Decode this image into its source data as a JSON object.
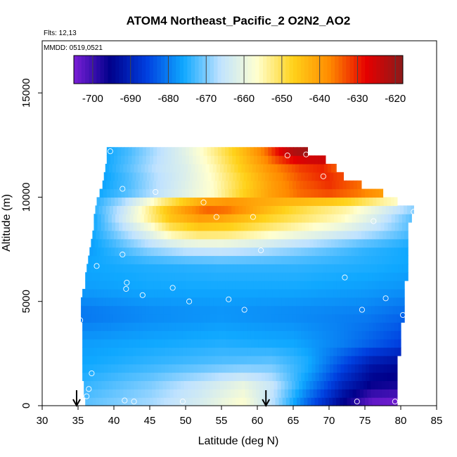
{
  "chart_data": {
    "type": "heatmap",
    "title": "ATOM4 Northeast_Pacific_2 O2N2_AO2",
    "info_lines": [
      "Flts: 12,13",
      "MMDD: 0519,0521"
    ],
    "xlabel": "Latitude (deg N)",
    "ylabel": "Altitude (m)",
    "xlim": [
      30,
      85
    ],
    "ylim": [
      0,
      17500
    ],
    "x_ticks": [
      "30",
      "35",
      "40",
      "45",
      "50",
      "55",
      "60",
      "65",
      "70",
      "75",
      "80",
      "85"
    ],
    "y_ticks": [
      "0",
      "5000",
      "10000",
      "15000"
    ],
    "colorbar": {
      "min": -705,
      "max": -618,
      "ticks": [
        "-700",
        "-690",
        "-680",
        "-670",
        "-660",
        "-650",
        "-640",
        "-630",
        "-620"
      ],
      "tick_values": [
        -700,
        -690,
        -680,
        -670,
        -660,
        -650,
        -640,
        -630,
        -620
      ],
      "colors": [
        "#7a1fd6",
        "#00008b",
        "#0040e0",
        "#0fa8ff",
        "#bfe2ff",
        "#ffffd0",
        "#ffd21a",
        "#ff8a00",
        "#e60000",
        "#8b1a1a"
      ]
    },
    "altitude_bands": [
      {
        "alt": 200,
        "lat_min": 36.0,
        "lat_max": 79.5
      },
      {
        "alt": 600,
        "lat_min": 35.8,
        "lat_max": 79.5
      },
      {
        "alt": 1000,
        "lat_min": 35.8,
        "lat_max": 79.5
      },
      {
        "alt": 1400,
        "lat_min": 35.6,
        "lat_max": 79.5
      },
      {
        "alt": 1800,
        "lat_min": 35.6,
        "lat_max": 79.5
      },
      {
        "alt": 2200,
        "lat_min": 35.6,
        "lat_max": 79.5
      },
      {
        "alt": 2600,
        "lat_min": 35.6,
        "lat_max": 80.0
      },
      {
        "alt": 3000,
        "lat_min": 35.6,
        "lat_max": 80.0
      },
      {
        "alt": 3400,
        "lat_min": 35.6,
        "lat_max": 80.0
      },
      {
        "alt": 3800,
        "lat_min": 35.6,
        "lat_max": 80.0
      },
      {
        "alt": 4200,
        "lat_min": 35.4,
        "lat_max": 80.5
      },
      {
        "alt": 4600,
        "lat_min": 35.4,
        "lat_max": 80.5
      },
      {
        "alt": 5000,
        "lat_min": 35.4,
        "lat_max": 80.5
      },
      {
        "alt": 5400,
        "lat_min": 35.6,
        "lat_max": 80.5
      },
      {
        "alt": 5800,
        "lat_min": 36.0,
        "lat_max": 80.5
      },
      {
        "alt": 6200,
        "lat_min": 36.0,
        "lat_max": 81.0
      },
      {
        "alt": 6600,
        "lat_min": 36.2,
        "lat_max": 81.0
      },
      {
        "alt": 7000,
        "lat_min": 36.4,
        "lat_max": 81.0
      },
      {
        "alt": 7400,
        "lat_min": 36.6,
        "lat_max": 81.0
      },
      {
        "alt": 7800,
        "lat_min": 36.8,
        "lat_max": 81.0
      },
      {
        "alt": 8200,
        "lat_min": 37.0,
        "lat_max": 81.0
      },
      {
        "alt": 8600,
        "lat_min": 37.2,
        "lat_max": 81.0
      },
      {
        "alt": 9000,
        "lat_min": 37.2,
        "lat_max": 81.5
      },
      {
        "alt": 9400,
        "lat_min": 37.4,
        "lat_max": 81.8
      },
      {
        "alt": 9800,
        "lat_min": 37.6,
        "lat_max": 79.5
      },
      {
        "alt": 10200,
        "lat_min": 38.0,
        "lat_max": 77.5
      },
      {
        "alt": 10600,
        "lat_min": 38.4,
        "lat_max": 74.5
      },
      {
        "alt": 11000,
        "lat_min": 38.6,
        "lat_max": 72.0
      },
      {
        "alt": 11400,
        "lat_min": 38.8,
        "lat_max": 71.0
      },
      {
        "alt": 11800,
        "lat_min": 39.0,
        "lat_max": 69.5
      },
      {
        "alt": 12200,
        "lat_min": 39.0,
        "lat_max": 67.0
      }
    ],
    "value_anchors": [
      {
        "alt": 200,
        "lat": [
          36,
          45,
          52,
          58,
          62,
          67,
          72,
          76,
          79.5
        ],
        "value": [
          -672,
          -668,
          -663,
          -657,
          -666,
          -682,
          -695,
          -703,
          -704
        ]
      },
      {
        "alt": 1000,
        "lat": [
          36,
          45,
          52,
          58,
          62,
          67,
          72,
          76,
          79.5
        ],
        "value": [
          -674,
          -670,
          -665,
          -660,
          -665,
          -678,
          -690,
          -696,
          -697
        ]
      },
      {
        "alt": 2000,
        "lat": [
          36,
          45,
          55,
          62,
          67,
          72,
          76,
          80
        ],
        "value": [
          -676,
          -674,
          -672,
          -671,
          -675,
          -685,
          -692,
          -694
        ]
      },
      {
        "alt": 3000,
        "lat": [
          36,
          45,
          55,
          65,
          72,
          80
        ],
        "value": [
          -677,
          -676,
          -675,
          -676,
          -680,
          -686
        ]
      },
      {
        "alt": 4400,
        "lat": [
          35.5,
          45,
          55,
          65,
          75,
          80.5
        ],
        "value": [
          -681,
          -679,
          -678,
          -679,
          -680,
          -682
        ]
      },
      {
        "alt": 5600,
        "lat": [
          36,
          45,
          55,
          65,
          75,
          80.5
        ],
        "value": [
          -677,
          -676,
          -676,
          -676,
          -677,
          -678
        ]
      },
      {
        "alt": 6800,
        "lat": [
          36.5,
          45,
          55,
          65,
          75,
          81
        ],
        "value": [
          -676,
          -675,
          -674,
          -674,
          -675,
          -676
        ]
      },
      {
        "alt": 7600,
        "lat": [
          36.8,
          40,
          45,
          50,
          55,
          60,
          65,
          70,
          75,
          81
        ],
        "value": [
          -677,
          -674,
          -668,
          -664,
          -663,
          -665,
          -668,
          -671,
          -674,
          -676
        ]
      },
      {
        "alt": 8400,
        "lat": [
          37,
          40,
          45,
          48,
          52,
          56,
          60,
          65,
          70,
          76,
          81
        ],
        "value": [
          -676,
          -670,
          -660,
          -652,
          -648,
          -649,
          -652,
          -656,
          -660,
          -666,
          -672
        ]
      },
      {
        "alt": 9000,
        "lat": [
          37.2,
          40,
          44,
          48,
          52,
          55,
          58,
          62,
          67,
          72,
          76,
          81.5
        ],
        "value": [
          -676,
          -668,
          -656,
          -645,
          -640,
          -641,
          -644,
          -648,
          -652,
          -656,
          -662,
          -672
        ]
      },
      {
        "alt": 9600,
        "lat": [
          37.4,
          41,
          44,
          47,
          50,
          53,
          56,
          60,
          64,
          68,
          73,
          77,
          81.8
        ],
        "value": [
          -674,
          -666,
          -656,
          -646,
          -638,
          -632,
          -633,
          -640,
          -646,
          -650,
          -654,
          -660,
          -668
        ]
      },
      {
        "alt": 10200,
        "lat": [
          38,
          42,
          46,
          50,
          54,
          58,
          62,
          66,
          70,
          74,
          77.5
        ],
        "value": [
          -676,
          -672,
          -666,
          -661,
          -656,
          -647,
          -640,
          -635,
          -633,
          -636,
          -640
        ]
      },
      {
        "alt": 10800,
        "lat": [
          38.4,
          42,
          46,
          50,
          54,
          58,
          62,
          66,
          70,
          74.5
        ],
        "value": [
          -677,
          -673,
          -667,
          -662,
          -656,
          -648,
          -640,
          -634,
          -630,
          -635
        ]
      },
      {
        "alt": 11400,
        "lat": [
          38.8,
          42,
          46,
          50,
          54,
          58,
          62,
          66,
          69,
          71
        ],
        "value": [
          -676,
          -672,
          -666,
          -662,
          -655,
          -646,
          -638,
          -632,
          -630,
          -634
        ]
      },
      {
        "alt": 12200,
        "lat": [
          39,
          42,
          46,
          50,
          54,
          58,
          61,
          63,
          65,
          67
        ],
        "value": [
          -676,
          -673,
          -667,
          -661,
          -653,
          -644,
          -636,
          -628,
          -622,
          -620
        ]
      }
    ],
    "sample_points": [
      [
        39.5,
        12200
      ],
      [
        41.2,
        10400
      ],
      [
        45.8,
        10250
      ],
      [
        52.5,
        9750
      ],
      [
        54.3,
        9050
      ],
      [
        59.4,
        9050
      ],
      [
        64.2,
        12000
      ],
      [
        66.8,
        12050
      ],
      [
        69.2,
        11000
      ],
      [
        76.2,
        8850
      ],
      [
        81.8,
        9300
      ],
      [
        60.5,
        7450
      ],
      [
        41.2,
        7250
      ],
      [
        37.6,
        6700
      ],
      [
        41.8,
        5900
      ],
      [
        41.7,
        5600
      ],
      [
        44,
        5300
      ],
      [
        48.2,
        5650
      ],
      [
        50.5,
        5000
      ],
      [
        56,
        5100
      ],
      [
        58.2,
        4600
      ],
      [
        72.2,
        6150
      ],
      [
        74.6,
        4600
      ],
      [
        77.9,
        5150
      ],
      [
        80.3,
        4350
      ],
      [
        35.3,
        4100
      ],
      [
        36.9,
        1550
      ],
      [
        36.5,
        800
      ],
      [
        36.2,
        450
      ],
      [
        41.5,
        250
      ],
      [
        42.8,
        200
      ],
      [
        49.6,
        200
      ],
      [
        73.9,
        200
      ],
      [
        79.2,
        200
      ]
    ],
    "arrows": [
      34.8,
      61.2
    ],
    "grid": false,
    "legend_position": "top-center colorbar"
  }
}
